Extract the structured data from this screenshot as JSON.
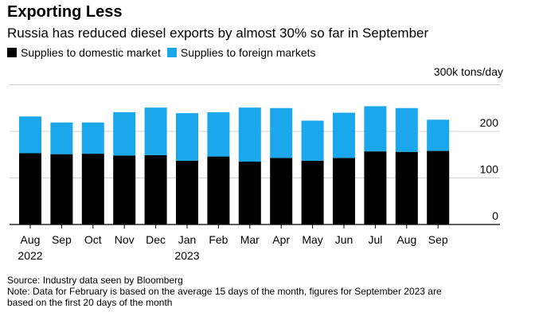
{
  "colors": {
    "domestic": "#000000",
    "foreign": "#1aa7ec",
    "grid": "#d0d0d0",
    "axis": "#000000"
  },
  "chart_data": {
    "type": "bar",
    "stacked": true,
    "title": "Exporting Less",
    "subtitle": "Russia has reduced diesel exports by almost 30% so far in September",
    "ylabel": "300k tons/day",
    "ylim": [
      0,
      300
    ],
    "yticks": [
      {
        "value": 0,
        "label": "0"
      },
      {
        "value": 100,
        "label": "100"
      },
      {
        "value": 200,
        "label": "200"
      },
      {
        "value": 300,
        "label": "300k tons/day"
      }
    ],
    "categories": [
      "Aug",
      "Sep",
      "Oct",
      "Nov",
      "Dec",
      "Jan",
      "Feb",
      "Mar",
      "Apr",
      "May",
      "Jun",
      "Jul",
      "Aug",
      "Sep"
    ],
    "year_labels": [
      "2022",
      "",
      "",
      "",
      "",
      "2023",
      "",
      "",
      "",
      "",
      "",
      "",
      "",
      ""
    ],
    "series": [
      {
        "name": "Supplies to domestic market",
        "color": "#000000",
        "values": [
          153,
          151,
          152,
          148,
          149,
          137,
          146,
          135,
          143,
          137,
          143,
          157,
          156,
          158
        ]
      },
      {
        "name": "Supplies to foreign markets",
        "color": "#1aa7ec",
        "values": [
          79,
          68,
          67,
          93,
          102,
          102,
          95,
          116,
          107,
          86,
          97,
          97,
          94,
          67
        ]
      }
    ],
    "legend_position": "top-left",
    "grid": true
  },
  "footer": {
    "source": "Source: Industry data seen by Bloomberg",
    "note_line1": "Note: Data for February is based on the average 15 days of the month, figures for September 2023 are",
    "note_line2": "based on the first 20 days of the month"
  }
}
